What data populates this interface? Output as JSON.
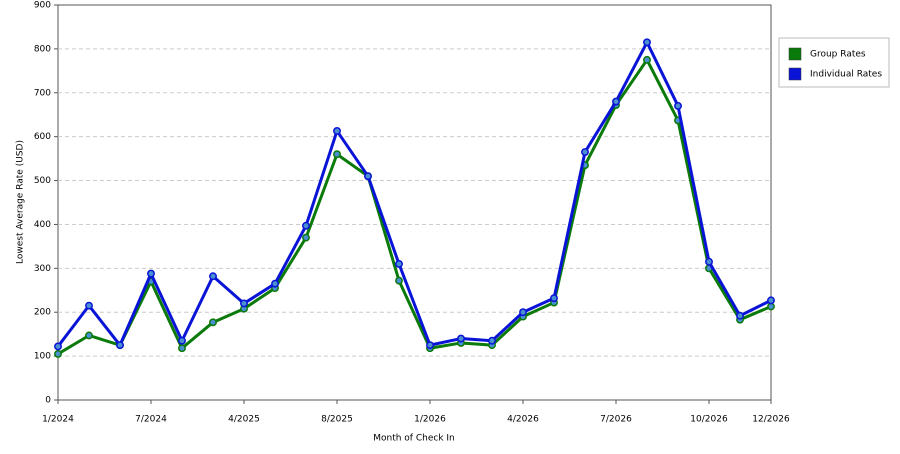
{
  "chart_data": {
    "type": "line",
    "y_label": "Lowest Average Rate (USD)",
    "x_label": "Month of Check In",
    "categories": [
      "1/2024",
      null,
      null,
      "7/2024",
      null,
      null,
      "4/2025",
      null,
      null,
      "8/2025",
      null,
      null,
      "1/2026",
      null,
      null,
      "4/2026",
      null,
      null,
      "7/2026",
      null,
      null,
      "10/2026",
      null,
      "12/2026"
    ],
    "series": [
      {
        "name": "Group Rates",
        "color": "#0a7a0a",
        "values": [
          105,
          147,
          125,
          270,
          118,
          177,
          208,
          255,
          370,
          560,
          510,
          272,
          118,
          130,
          125,
          190,
          222,
          535,
          672,
          775,
          637,
          300,
          183,
          213
        ]
      },
      {
        "name": "Individual Rates",
        "color": "#0a14d6",
        "values": [
          122,
          215,
          125,
          288,
          135,
          282,
          220,
          265,
          397,
          613,
          510,
          310,
          125,
          140,
          135,
          200,
          232,
          565,
          680,
          815,
          670,
          315,
          192,
          227
        ]
      }
    ],
    "ylim": [
      0,
      900
    ],
    "yticks": [
      0,
      100,
      200,
      300,
      400,
      500,
      600,
      700,
      800,
      900
    ],
    "grid": true,
    "legend": "right"
  }
}
